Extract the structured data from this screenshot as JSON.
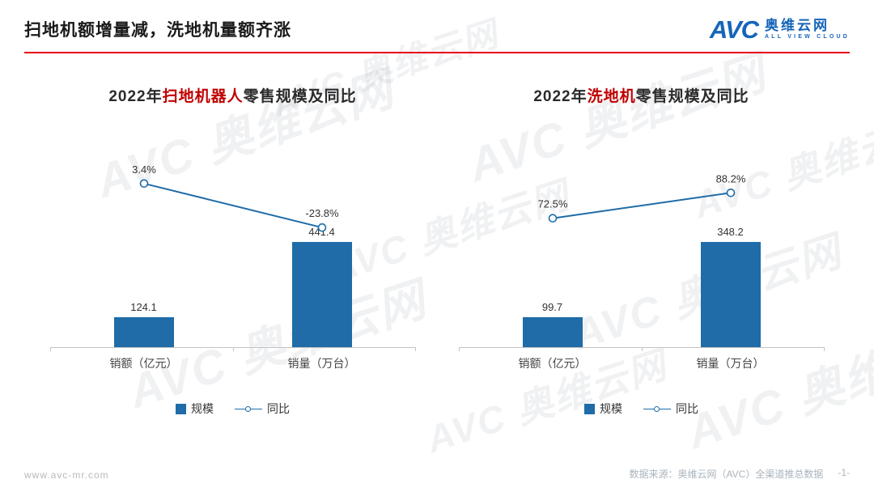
{
  "header": {
    "title": "扫地机额增量减，洗地机量额齐涨"
  },
  "logo": {
    "abbr": "AVC",
    "name": "奥维云网",
    "tagline": "ALL VIEW CLOUD"
  },
  "watermark": {
    "abbr": "AVC",
    "name": "奥维云网"
  },
  "colors": {
    "bar": "#1f6ca8",
    "line": "#1f6ca8",
    "highlight_red": "#c00000",
    "header_rule_red": "#e60012",
    "logo_blue": "#1565b8"
  },
  "footer": {
    "site": "www.avc-mr.com",
    "source": "数据来源：奥维云网（AVC）全渠道推总数据",
    "page": "-1-"
  },
  "chart_data": [
    {
      "type": "bar+line",
      "title": {
        "prefix": "2022年",
        "highlight": "扫地机器人",
        "suffix": "零售规模及同比"
      },
      "categories": [
        "销额（亿元）",
        "销量（万台）"
      ],
      "series": [
        {
          "name": "规模",
          "type": "bar",
          "values": [
            124.1,
            441.4
          ],
          "labels": [
            "124.1",
            "441.4"
          ]
        },
        {
          "name": "同比",
          "type": "line",
          "unit": "%",
          "values": [
            3.4,
            -23.8
          ],
          "labels": [
            "3.4%",
            "-23.8%"
          ]
        }
      ],
      "legend_position": "bottom",
      "grid": false
    },
    {
      "type": "bar+line",
      "title": {
        "prefix": "2022年",
        "highlight": "洗地机",
        "suffix": "零售规模及同比"
      },
      "categories": [
        "销额（亿元）",
        "销量（万台）"
      ],
      "series": [
        {
          "name": "规模",
          "type": "bar",
          "values": [
            99.7,
            348.2
          ],
          "labels": [
            "99.7",
            "348.2"
          ]
        },
        {
          "name": "同比",
          "type": "line",
          "unit": "%",
          "values": [
            72.5,
            88.2
          ],
          "labels": [
            "72.5%",
            "88.2%"
          ]
        }
      ],
      "legend_position": "bottom",
      "grid": false
    }
  ]
}
